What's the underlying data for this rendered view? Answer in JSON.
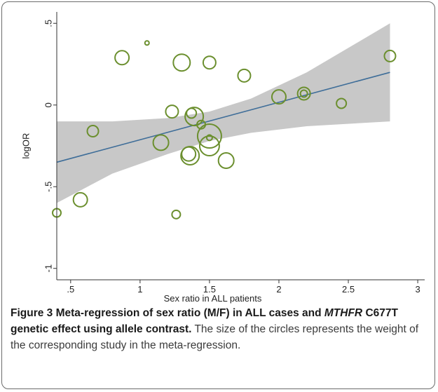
{
  "chart_data": {
    "type": "scatter",
    "xlabel": "Sex ratio in ALL patients",
    "ylabel": "logOR",
    "xlim": [
      0.4,
      3.05
    ],
    "ylim": [
      -1.07,
      0.57
    ],
    "x_ticks": [
      0.5,
      1,
      1.5,
      2,
      2.5,
      3
    ],
    "x_tick_labels": [
      ".5",
      "1",
      "1.5",
      "2",
      "2.5",
      "3"
    ],
    "y_ticks": [
      -1,
      -0.5,
      0,
      0.5
    ],
    "y_tick_labels": [
      "-1",
      "-.5",
      "0",
      ".5"
    ],
    "grid": false,
    "colors": {
      "markers": "#6b8f2e",
      "fit_line": "#3f6e99",
      "confidence_band": "#c8c8c8"
    },
    "regression_line": {
      "x": [
        0.4,
        2.8
      ],
      "y": [
        -0.35,
        0.2
      ]
    },
    "confidence_band": {
      "x": [
        0.4,
        0.8,
        1.2,
        1.5,
        1.8,
        2.2,
        2.8
      ],
      "lower": [
        -0.6,
        -0.42,
        -0.3,
        -0.22,
        -0.17,
        -0.13,
        -0.1
      ],
      "upper": [
        -0.1,
        -0.1,
        -0.08,
        -0.04,
        0.04,
        0.2,
        0.5
      ]
    },
    "points": [
      {
        "x": 0.4,
        "y": -0.66,
        "weight": 6
      },
      {
        "x": 0.57,
        "y": -0.58,
        "weight": 10
      },
      {
        "x": 0.66,
        "y": -0.16,
        "weight": 8
      },
      {
        "x": 0.87,
        "y": 0.29,
        "weight": 10
      },
      {
        "x": 1.05,
        "y": 0.38,
        "weight": 3
      },
      {
        "x": 1.15,
        "y": -0.23,
        "weight": 11
      },
      {
        "x": 1.23,
        "y": -0.04,
        "weight": 9
      },
      {
        "x": 1.26,
        "y": -0.67,
        "weight": 6
      },
      {
        "x": 1.3,
        "y": 0.26,
        "weight": 12
      },
      {
        "x": 1.35,
        "y": -0.3,
        "weight": 10
      },
      {
        "x": 1.36,
        "y": -0.31,
        "weight": 13
      },
      {
        "x": 1.37,
        "y": -0.05,
        "weight": 7
      },
      {
        "x": 1.39,
        "y": -0.07,
        "weight": 13
      },
      {
        "x": 1.44,
        "y": -0.12,
        "weight": 6
      },
      {
        "x": 1.5,
        "y": -0.19,
        "weight": 17
      },
      {
        "x": 1.5,
        "y": -0.25,
        "weight": 14
      },
      {
        "x": 1.5,
        "y": -0.2,
        "weight": 4
      },
      {
        "x": 1.5,
        "y": 0.26,
        "weight": 9
      },
      {
        "x": 1.62,
        "y": -0.34,
        "weight": 11
      },
      {
        "x": 1.75,
        "y": 0.18,
        "weight": 9
      },
      {
        "x": 2.0,
        "y": 0.05,
        "weight": 10
      },
      {
        "x": 2.18,
        "y": 0.07,
        "weight": 9
      },
      {
        "x": 2.18,
        "y": 0.07,
        "weight": 5
      },
      {
        "x": 2.45,
        "y": 0.01,
        "weight": 7
      },
      {
        "x": 2.8,
        "y": 0.3,
        "weight": 8
      }
    ]
  },
  "caption": {
    "bold_prefix": "Figure 3 Meta-regression of sex ratio (M/F) in ALL cases and ",
    "bold_gene": "MTHFR",
    "bold_suffix": " C677T genetic effect using allele contrast.",
    "body": " The size of the circles represents the weight of the corresponding study in the meta-regression."
  }
}
